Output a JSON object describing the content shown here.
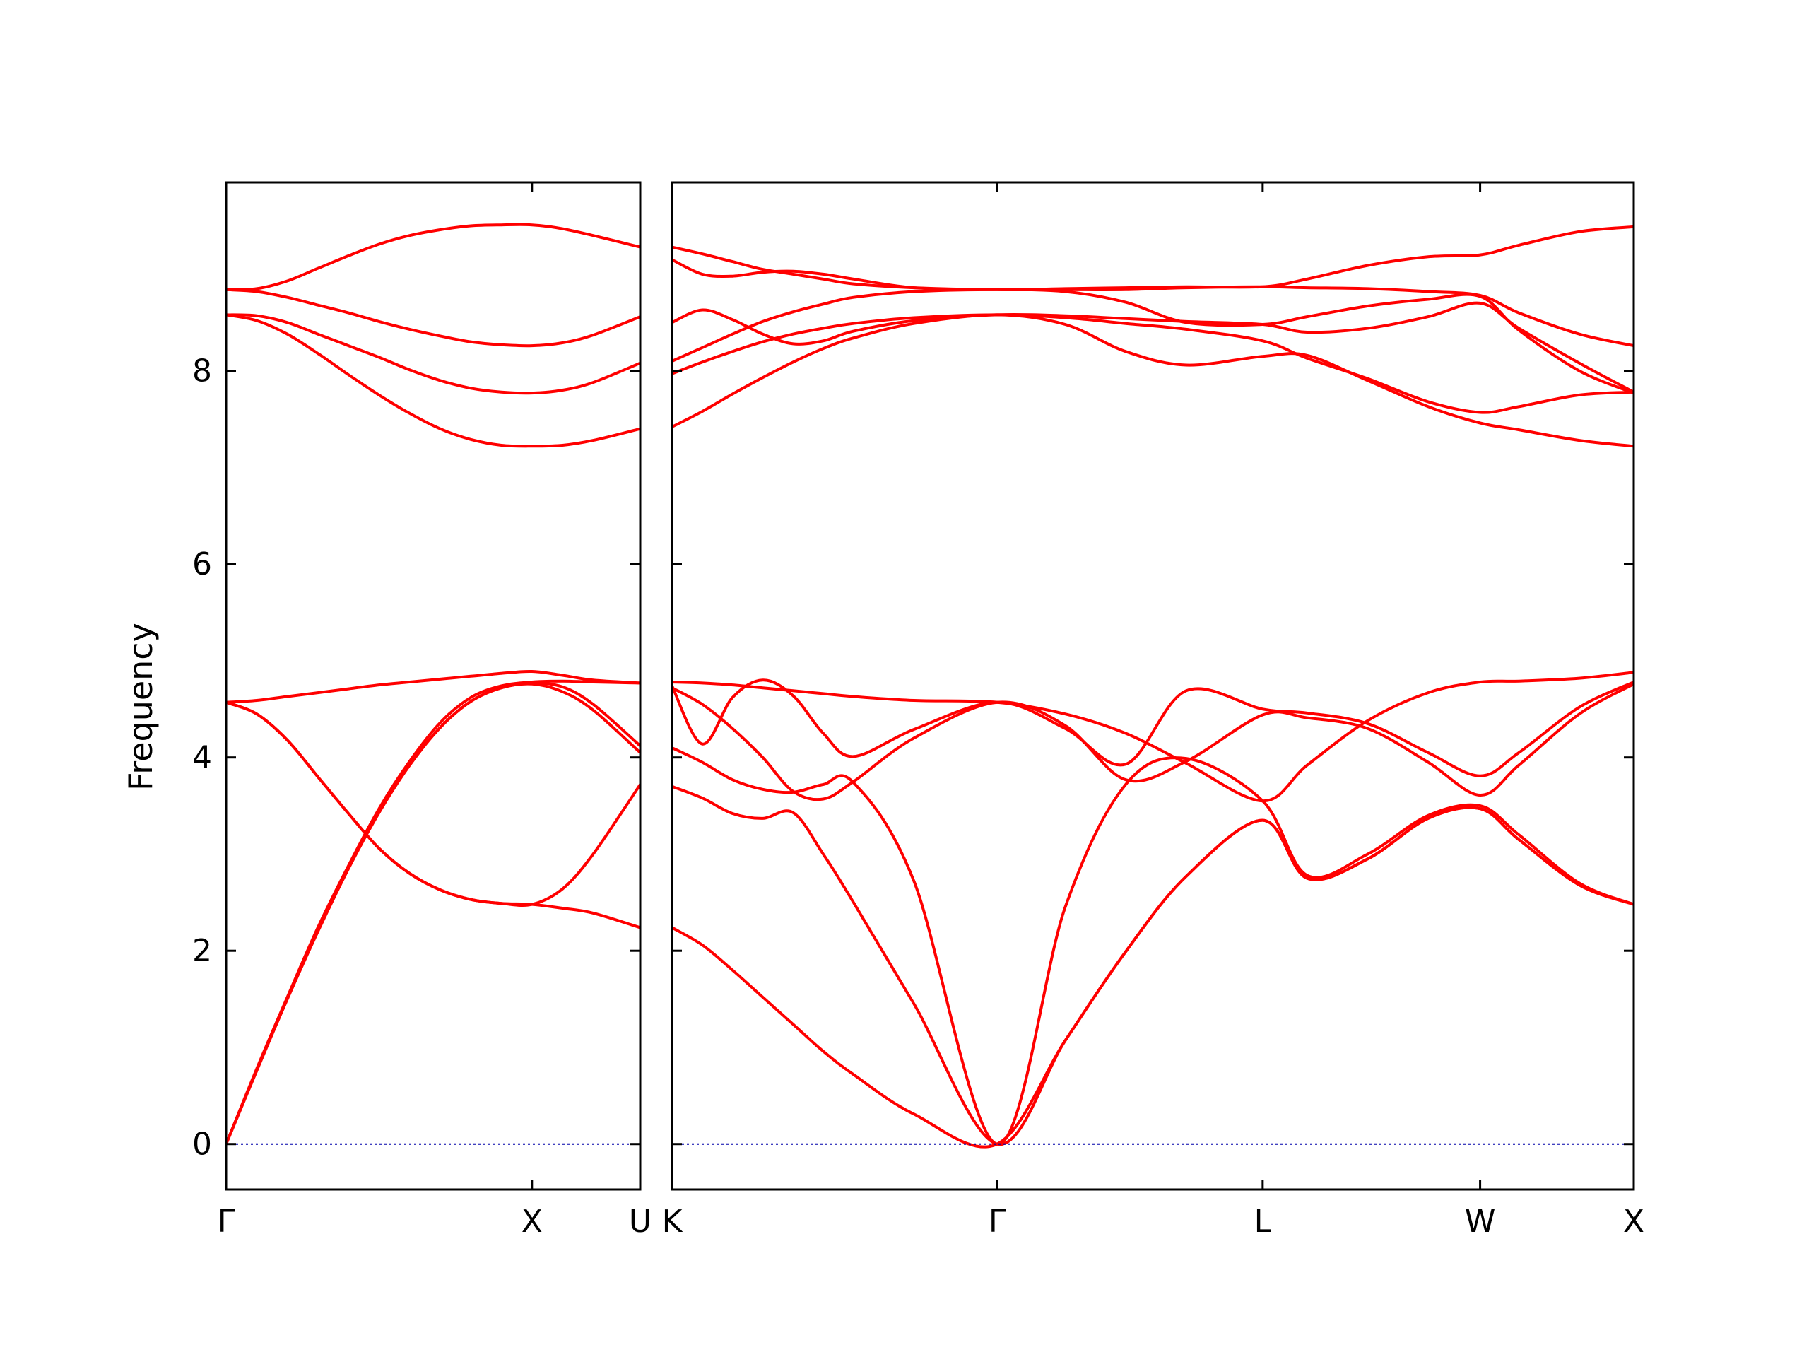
{
  "chart_data": {
    "type": "line",
    "title": "",
    "xlabel": "",
    "ylabel": "Frequency",
    "ylim": [
      -0.47,
      9.95
    ],
    "yticks": [
      0,
      2,
      4,
      6,
      8
    ],
    "grid": false,
    "legend": "none",
    "colors": {
      "band": "#ff0000",
      "zero_line": "#0000aa",
      "frame": "#000000"
    },
    "panels": [
      {
        "xlim": [
          0,
          1.354
        ],
        "ticks": [
          {
            "x": 0,
            "label": "Γ"
          },
          {
            "x": 1.0,
            "label": "X"
          },
          {
            "x": 1.354,
            "label": "U"
          }
        ],
        "series": [
          {
            "x": [
              0,
              0.1,
              0.2,
              0.3,
              0.4,
              0.5,
              0.6,
              0.7,
              0.8,
              0.9,
              1.0,
              1.1,
              1.2,
              1.354
            ],
            "values": [
              8.84,
              8.85,
              8.93,
              9.06,
              9.19,
              9.31,
              9.4,
              9.46,
              9.5,
              9.51,
              9.51,
              9.47,
              9.4,
              9.28
            ]
          },
          {
            "x": [
              0,
              0.1,
              0.2,
              0.3,
              0.4,
              0.5,
              0.6,
              0.7,
              0.8,
              0.9,
              1.0,
              1.1,
              1.2,
              1.354
            ],
            "values": [
              8.84,
              8.82,
              8.76,
              8.68,
              8.6,
              8.51,
              8.43,
              8.36,
              8.3,
              8.27,
              8.26,
              8.29,
              8.37,
              8.56
            ]
          },
          {
            "x": [
              0,
              0.1,
              0.2,
              0.3,
              0.4,
              0.5,
              0.6,
              0.7,
              0.8,
              0.9,
              1.0,
              1.1,
              1.2,
              1.354
            ],
            "values": [
              8.58,
              8.57,
              8.5,
              8.38,
              8.26,
              8.14,
              8.01,
              7.9,
              7.82,
              7.78,
              7.77,
              7.8,
              7.88,
              8.08
            ]
          },
          {
            "x": [
              0,
              0.1,
              0.2,
              0.3,
              0.4,
              0.5,
              0.6,
              0.7,
              0.8,
              0.9,
              1.0,
              1.1,
              1.2,
              1.354
            ],
            "values": [
              8.58,
              8.52,
              8.38,
              8.18,
              7.96,
              7.75,
              7.56,
              7.4,
              7.29,
              7.23,
              7.22,
              7.23,
              7.28,
              7.4
            ]
          },
          {
            "x": [
              0,
              0.1,
              0.2,
              0.3,
              0.4,
              0.5,
              0.6,
              0.7,
              0.8,
              0.9,
              1.0,
              1.1,
              1.2,
              1.354
            ],
            "values": [
              4.57,
              4.59,
              4.63,
              4.67,
              4.71,
              4.75,
              4.78,
              4.81,
              4.84,
              4.87,
              4.89,
              4.85,
              4.8,
              4.77
            ]
          },
          {
            "x": [
              0,
              0.1,
              0.2,
              0.3,
              0.4,
              0.5,
              0.6,
              0.7,
              0.8,
              0.9,
              1.0,
              1.1,
              1.2,
              1.354
            ],
            "values": [
              4.57,
              4.45,
              4.18,
              3.8,
              3.42,
              3.06,
              2.8,
              2.63,
              2.53,
              2.49,
              2.48,
              2.44,
              2.39,
              2.24
            ]
          },
          {
            "x": [
              0,
              0.1,
              0.2,
              0.3,
              0.4,
              0.5,
              0.6,
              0.7,
              0.8,
              0.9,
              1.0,
              1.1,
              1.2,
              1.354
            ],
            "values": [
              4.57,
              4.45,
              4.18,
              3.8,
              3.42,
              3.06,
              2.8,
              2.63,
              2.53,
              2.49,
              2.48,
              2.64,
              3.0,
              3.72
            ]
          },
          {
            "x": [
              0,
              0.1,
              0.2,
              0.3,
              0.4,
              0.5,
              0.6,
              0.7,
              0.8,
              0.9,
              1.0,
              1.1,
              1.2,
              1.354
            ],
            "values": [
              0,
              0.78,
              1.52,
              2.24,
              2.88,
              3.47,
              3.96,
              4.36,
              4.62,
              4.74,
              4.78,
              4.79,
              4.78,
              4.77
            ]
          },
          {
            "x": [
              0,
              0.1,
              0.2,
              0.3,
              0.4,
              0.5,
              0.6,
              0.7,
              0.8,
              0.9,
              1.0,
              1.1,
              1.2,
              1.354
            ],
            "values": [
              0,
              0.76,
              1.5,
              2.2,
              2.85,
              3.43,
              3.92,
              4.31,
              4.58,
              4.72,
              4.77,
              4.73,
              4.55,
              4.12
            ]
          },
          {
            "x": [
              0,
              0.1,
              0.2,
              0.3,
              0.4,
              0.5,
              0.6,
              0.7,
              0.8,
              0.9,
              1.0,
              1.1,
              1.2,
              1.354
            ],
            "values": [
              0,
              0.76,
              1.5,
              2.2,
              2.85,
              3.43,
              3.92,
              4.31,
              4.58,
              4.72,
              4.76,
              4.68,
              4.49,
              4.05
            ]
          },
          {
            "x": [
              0,
              1.354
            ],
            "values": [
              0,
              0
            ],
            "style": "zero"
          }
        ]
      },
      {
        "xlim": [
          0,
          3.18
        ],
        "ticks": [
          {
            "x": 0,
            "label": "K"
          },
          {
            "x": 1.075,
            "label": "Γ"
          },
          {
            "x": 1.953,
            "label": "L"
          },
          {
            "x": 2.672,
            "label": "W"
          },
          {
            "x": 3.18,
            "label": "X"
          }
        ],
        "series": [
          {
            "x": [
              0,
              0.1,
              0.2,
              0.3,
              0.4,
              0.5,
              0.6,
              0.8,
              1.075,
              1.3,
              1.5,
              1.7,
              1.953,
              2.1,
              2.3,
              2.5,
              2.672,
              2.8,
              3.0,
              3.18
            ],
            "values": [
              9.28,
              9.21,
              9.13,
              9.05,
              9.0,
              8.95,
              8.9,
              8.86,
              8.84,
              8.85,
              8.86,
              8.87,
              8.87,
              8.95,
              9.09,
              9.18,
              9.2,
              9.3,
              9.44,
              9.49
            ]
          },
          {
            "x": [
              0,
              0.1,
              0.2,
              0.3,
              0.4,
              0.5,
              0.6,
              0.8,
              1.075,
              1.3,
              1.5,
              1.7,
              1.953,
              2.1,
              2.3,
              2.5,
              2.672,
              2.8,
              3.0,
              3.18
            ],
            "values": [
              9.15,
              9.0,
              8.98,
              9.02,
              9.03,
              9.0,
              8.95,
              8.86,
              8.84,
              8.84,
              8.84,
              8.86,
              8.87,
              8.86,
              8.85,
              8.82,
              8.78,
              8.6,
              8.38,
              8.26
            ]
          },
          {
            "x": [
              0,
              0.1,
              0.2,
              0.3,
              0.4,
              0.5,
              0.6,
              0.8,
              1.075,
              1.3,
              1.5,
              1.7,
              1.953,
              2.1,
              2.3,
              2.5,
              2.672,
              2.8,
              3.0,
              3.18
            ],
            "values": [
              8.1,
              8.24,
              8.38,
              8.51,
              8.61,
              8.69,
              8.76,
              8.82,
              8.84,
              8.82,
              8.71,
              8.5,
              8.48,
              8.56,
              8.67,
              8.74,
              8.77,
              8.42,
              8.0,
              7.77
            ]
          },
          {
            "x": [
              0,
              0.1,
              0.2,
              0.3,
              0.4,
              0.5,
              0.6,
              0.8,
              1.075,
              1.3,
              1.5,
              1.7,
              1.953,
              2.1,
              2.3,
              2.5,
              2.672,
              2.8,
              3.0,
              3.18
            ],
            "values": [
              8.5,
              8.63,
              8.53,
              8.38,
              8.28,
              8.31,
              8.41,
              8.52,
              8.58,
              8.57,
              8.54,
              8.51,
              8.48,
              8.4,
              8.44,
              8.56,
              8.7,
              8.44,
              8.08,
              7.78
            ]
          },
          {
            "x": [
              0,
              0.1,
              0.2,
              0.3,
              0.4,
              0.5,
              0.6,
              0.8,
              1.075,
              1.3,
              1.5,
              1.7,
              1.953,
              2.1,
              2.3,
              2.5,
              2.672,
              2.8,
              3.0,
              3.18
            ],
            "values": [
              7.97,
              8.09,
              8.2,
              8.3,
              8.38,
              8.44,
              8.49,
              8.55,
              8.58,
              8.55,
              8.49,
              8.43,
              8.31,
              8.13,
              7.92,
              7.68,
              7.57,
              7.63,
              7.75,
              7.78
            ]
          },
          {
            "x": [
              0,
              0.1,
              0.2,
              0.3,
              0.4,
              0.5,
              0.6,
              0.8,
              1.075,
              1.3,
              1.5,
              1.7,
              1.953,
              2.1,
              2.3,
              2.5,
              2.672,
              2.8,
              3.0,
              3.18
            ],
            "values": [
              7.42,
              7.58,
              7.76,
              7.93,
              8.09,
              8.23,
              8.34,
              8.49,
              8.58,
              8.48,
              8.2,
              8.06,
              8.15,
              8.16,
              7.9,
              7.63,
              7.46,
              7.39,
              7.28,
              7.22
            ]
          },
          {
            "x": [
              0,
              0.1,
              0.2,
              0.3,
              0.4,
              0.5,
              0.6,
              0.8,
              1.075,
              1.3,
              1.5,
              1.7,
              1.953,
              2.1,
              2.3,
              2.5,
              2.672,
              2.8,
              3.0,
              3.18
            ],
            "values": [
              4.78,
              4.77,
              4.75,
              4.72,
              4.69,
              4.66,
              4.63,
              4.59,
              4.57,
              4.45,
              4.25,
              3.94,
              3.55,
              3.92,
              4.38,
              4.67,
              4.78,
              4.79,
              4.82,
              4.88
            ]
          },
          {
            "x": [
              0,
              0.1,
              0.2,
              0.3,
              0.4,
              0.5,
              0.6,
              0.8,
              1.075,
              1.3,
              1.5,
              1.7,
              1.953,
              2.1,
              2.3,
              2.5,
              2.672,
              2.8,
              3.0,
              3.18
            ],
            "values": [
              4.74,
              4.14,
              4.62,
              4.8,
              4.64,
              4.25,
              4.01,
              4.29,
              4.57,
              4.3,
              3.93,
              4.69,
              4.5,
              4.46,
              4.35,
              4.05,
              3.81,
              4.05,
              4.52,
              4.78
            ]
          },
          {
            "x": [
              0,
              0.1,
              0.2,
              0.3,
              0.4,
              0.5,
              0.6,
              0.8,
              1.075,
              1.3,
              1.5,
              1.7,
              1.953,
              2.1,
              2.3,
              2.5,
              2.672,
              2.8,
              3.0,
              3.18
            ],
            "values": [
              4.72,
              4.55,
              4.3,
              4.0,
              3.65,
              3.57,
              3.75,
              4.2,
              4.57,
              4.33,
              3.77,
              3.96,
              4.44,
              4.41,
              4.3,
              3.95,
              3.61,
              3.92,
              4.45,
              4.76
            ]
          },
          {
            "x": [
              0,
              0.1,
              0.2,
              0.3,
              0.4,
              0.5,
              0.6,
              0.8,
              1.075,
              1.3,
              1.5,
              1.7,
              1.953,
              2.1,
              2.3,
              2.5,
              2.672,
              2.8,
              3.0,
              3.18
            ],
            "values": [
              4.1,
              3.95,
              3.77,
              3.67,
              3.64,
              3.72,
              3.74,
              2.72,
              0.0,
              2.45,
              3.72,
              3.99,
              3.55,
              2.78,
              3.0,
              3.4,
              3.5,
              3.2,
              2.7,
              2.48
            ]
          },
          {
            "x": [
              0,
              0.1,
              0.2,
              0.3,
              0.4,
              0.5,
              0.6,
              0.8,
              1.075,
              1.3,
              1.5,
              1.7,
              1.953,
              2.1,
              2.3,
              2.5,
              2.672,
              2.8,
              3.0,
              3.18
            ],
            "values": [
              3.7,
              3.58,
              3.42,
              3.37,
              3.43,
              3.0,
              2.5,
              1.45,
              0.0,
              1.07,
              1.99,
              2.77,
              3.35,
              2.75,
              2.95,
              3.37,
              3.47,
              3.15,
              2.68,
              2.48
            ]
          },
          {
            "x": [
              0,
              0.1,
              0.2,
              0.3,
              0.4,
              0.5,
              0.6,
              0.8,
              1.075,
              1.3,
              1.5,
              1.7,
              1.953,
              2.1,
              2.3,
              2.5,
              2.672,
              2.8,
              3.0,
              3.18
            ],
            "values": [
              2.24,
              2.06,
              1.8,
              1.52,
              1.24,
              0.96,
              0.72,
              0.31,
              0.0,
              1.07,
              1.99,
              2.77,
              3.35,
              2.75,
              2.95,
              3.37,
              3.47,
              3.15,
              2.68,
              2.48
            ]
          },
          {
            "x": [
              0,
              3.18
            ],
            "values": [
              0,
              0
            ],
            "style": "zero"
          }
        ]
      }
    ]
  }
}
